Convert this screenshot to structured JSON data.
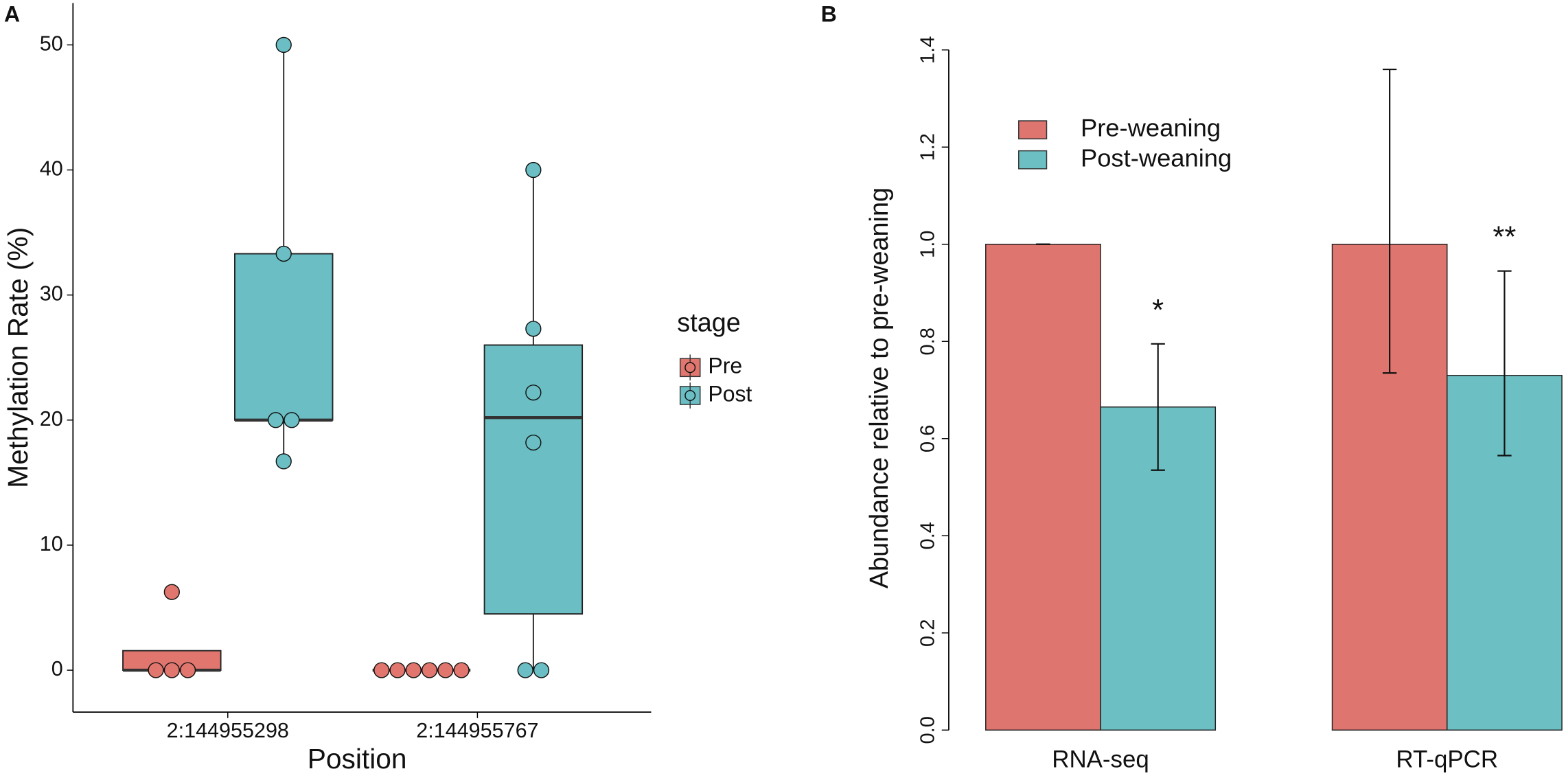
{
  "chart_data": [
    {
      "type": "box",
      "panel": "A",
      "xlabel": "Position",
      "ylabel": "Methylation Rate (%)",
      "legend_title": "stage",
      "categories": [
        "2:144955298",
        "2:144955767"
      ],
      "ylim": [
        -3.35,
        53.35
      ],
      "yticks": [
        0,
        10,
        20,
        30,
        40,
        50
      ],
      "series": [
        {
          "name": "Pre",
          "color": "#e0766e",
          "boxes": [
            {
              "min": 0,
              "q1": 0,
              "median": 0,
              "q3": 1.56,
              "max": 1.56,
              "points": [
                0,
                0,
                0,
                6.25
              ]
            },
            {
              "min": 0,
              "q1": 0,
              "median": 0,
              "q3": 0,
              "max": 0,
              "points": [
                0,
                0,
                0,
                0,
                0,
                0
              ]
            }
          ]
        },
        {
          "name": "Post",
          "color": "#6bbfc4",
          "boxes": [
            {
              "min": 16.7,
              "q1": 20,
              "median": 20,
              "q3": 33.3,
              "max": 50,
              "points": [
                50,
                33.3,
                20,
                20,
                16.7
              ]
            },
            {
              "min": 0,
              "q1": 4.5,
              "median": 20.2,
              "q3": 26,
              "max": 40,
              "points": [
                40,
                27.3,
                22.2,
                18.2,
                0,
                0
              ]
            }
          ]
        }
      ]
    },
    {
      "type": "bar",
      "panel": "B",
      "ylabel": "Abundance relative to pre-weaning",
      "categories": [
        "RNA-seq",
        "RT-qPCR"
      ],
      "ylim": [
        0,
        1.4
      ],
      "yticks": [
        {
          "value": 0,
          "label": "0.0"
        },
        0.2,
        0.4,
        0.6,
        0.8,
        {
          "value": 1,
          "label": "1.0"
        },
        1.2,
        1.4
      ],
      "series": [
        {
          "name": "Pre-weaning",
          "color": "#de756f",
          "values": [
            1,
            1
          ],
          "error_lower": [
            0,
            0.265
          ],
          "error_upper": [
            0,
            0.36
          ]
        },
        {
          "name": "Post-weaning",
          "color": "#6cbfc2",
          "values": [
            0.665,
            0.73
          ],
          "error_lower": [
            0.13,
            0.165
          ],
          "error_upper": [
            0.13,
            0.215
          ]
        }
      ],
      "annotations": [
        "*",
        "**"
      ]
    }
  ]
}
